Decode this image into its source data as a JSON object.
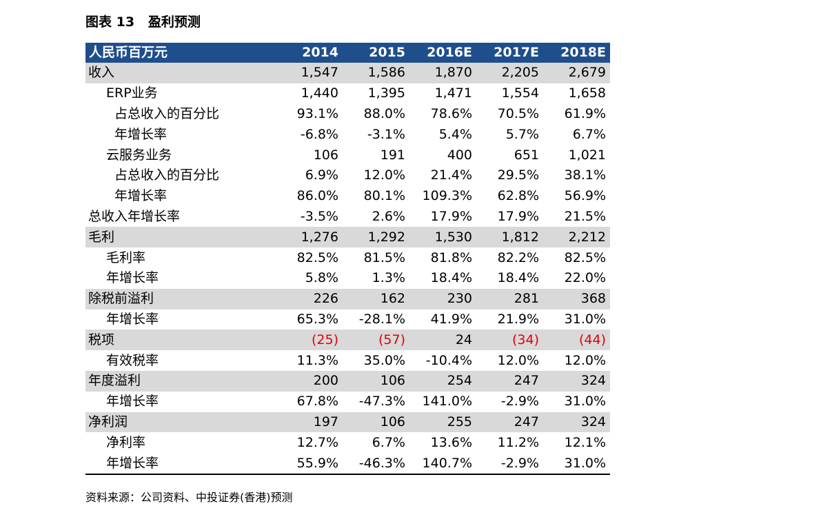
{
  "title": "图表 13   盈利预测",
  "table": {
    "header": [
      "人民币百万元",
      "2014",
      "2015",
      "2016E",
      "2017E",
      "2018E"
    ],
    "rows": [
      {
        "label": "收入",
        "level": 0,
        "shade": true,
        "values": [
          "1,547",
          "1,586",
          "1,870",
          "2,205",
          "2,679"
        ]
      },
      {
        "label": "ERP业务",
        "level": 1,
        "shade": false,
        "values": [
          "1,440",
          "1,395",
          "1,471",
          "1,554",
          "1,658"
        ]
      },
      {
        "label": "占总收入的百分比",
        "level": 2,
        "shade": false,
        "values": [
          "93.1%",
          "88.0%",
          "78.6%",
          "70.5%",
          "61.9%"
        ]
      },
      {
        "label": "年增长率",
        "level": 2,
        "shade": false,
        "values": [
          "-6.8%",
          "-3.1%",
          "5.4%",
          "5.7%",
          "6.7%"
        ]
      },
      {
        "label": "云服务业务",
        "level": 1,
        "shade": false,
        "values": [
          "106",
          "191",
          "400",
          "651",
          "1,021"
        ]
      },
      {
        "label": "占总收入的百分比",
        "level": 2,
        "shade": false,
        "values": [
          "6.9%",
          "12.0%",
          "21.4%",
          "29.5%",
          "38.1%"
        ]
      },
      {
        "label": "年增长率",
        "level": 2,
        "shade": false,
        "values": [
          "86.0%",
          "80.1%",
          "109.3%",
          "62.8%",
          "56.9%"
        ]
      },
      {
        "label": "总收入年增长率",
        "level": 0,
        "shade": false,
        "values": [
          "-3.5%",
          "2.6%",
          "17.9%",
          "17.9%",
          "21.5%"
        ]
      },
      {
        "label": "毛利",
        "level": 0,
        "shade": true,
        "values": [
          "1,276",
          "1,292",
          "1,530",
          "1,812",
          "2,212"
        ]
      },
      {
        "label": "毛利率",
        "level": 1,
        "shade": false,
        "values": [
          "82.5%",
          "81.5%",
          "81.8%",
          "82.2%",
          "82.5%"
        ]
      },
      {
        "label": "年增长率",
        "level": 1,
        "shade": false,
        "values": [
          "5.8%",
          "1.3%",
          "18.4%",
          "18.4%",
          "22.0%"
        ]
      },
      {
        "label": "除税前溢利",
        "level": 0,
        "shade": true,
        "values": [
          "226",
          "162",
          "230",
          "281",
          "368"
        ]
      },
      {
        "label": "年增长率",
        "level": 1,
        "shade": false,
        "values": [
          "65.3%",
          "-28.1%",
          "41.9%",
          "21.9%",
          "31.0%"
        ]
      },
      {
        "label": "税项",
        "level": 0,
        "shade": true,
        "values": [
          "(25)",
          "(57)",
          "24",
          "(34)",
          "(44)"
        ],
        "red": [
          true,
          true,
          false,
          true,
          true
        ]
      },
      {
        "label": "有效税率",
        "level": 1,
        "shade": false,
        "values": [
          "11.3%",
          "35.0%",
          "-10.4%",
          "12.0%",
          "12.0%"
        ]
      },
      {
        "label": "年度溢利",
        "level": 0,
        "shade": true,
        "values": [
          "200",
          "106",
          "254",
          "247",
          "324"
        ]
      },
      {
        "label": "年增长率",
        "level": 1,
        "shade": false,
        "values": [
          "67.8%",
          "-47.3%",
          "141.0%",
          "-2.9%",
          "31.0%"
        ]
      },
      {
        "label": "净利润",
        "level": 0,
        "shade": true,
        "values": [
          "197",
          "106",
          "255",
          "247",
          "324"
        ]
      },
      {
        "label": "净利率",
        "level": 1,
        "shade": false,
        "values": [
          "12.7%",
          "6.7%",
          "13.6%",
          "11.2%",
          "12.1%"
        ]
      },
      {
        "label": "年增长率",
        "level": 1,
        "shade": false,
        "values": [
          "55.9%",
          "-46.3%",
          "140.7%",
          "-2.9%",
          "31.0%"
        ]
      }
    ]
  },
  "source": "资料来源：公司资料、中投证券(香港)预测",
  "colors": {
    "header_bg": "#1f4e8c",
    "shade_bg": "#d9d9d9",
    "negative_text": "#e00000"
  }
}
